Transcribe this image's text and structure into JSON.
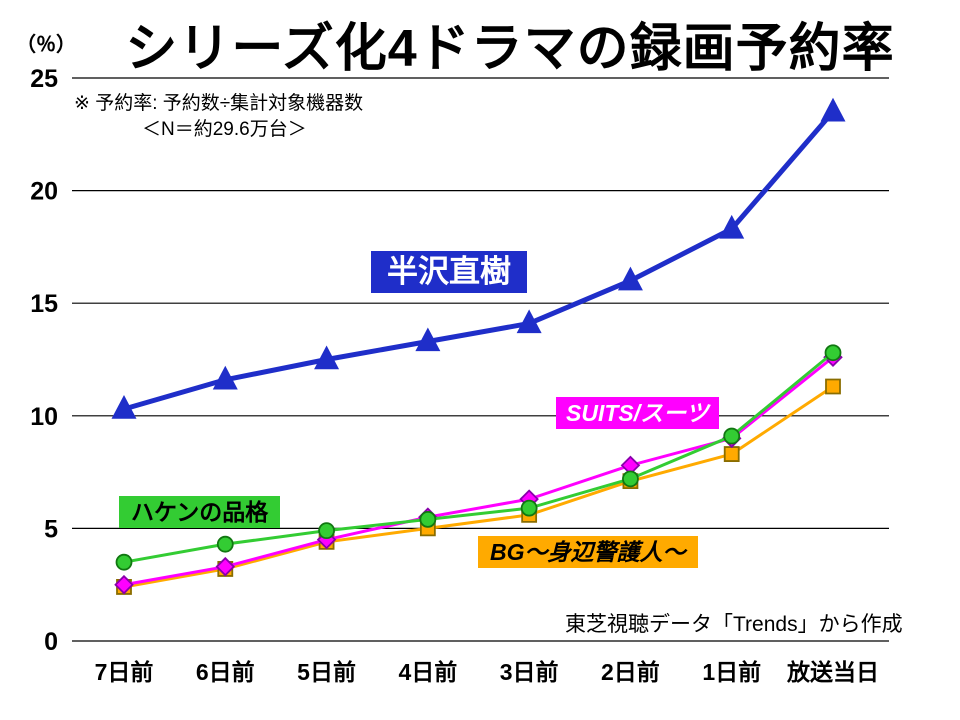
{
  "page": {
    "note_line1": "※ 予約率: 予約数÷集計対象機器数",
    "note_line2": "＜N＝約29.6万台＞",
    "source": "東芝視聴データ「Trends」から作成"
  },
  "chart_data": {
    "type": "line",
    "title": "シリーズ化4ドラマの録画予約率",
    "y_unit": "（％）",
    "categories": [
      "7日前",
      "6日前",
      "5日前",
      "4日前",
      "3日前",
      "2日前",
      "1日前",
      "放送当日"
    ],
    "ylim": [
      0,
      25
    ],
    "ytick_step": 5,
    "grid": "horizontal-black-lines",
    "legend_position": "labels-on-chart",
    "series": [
      {
        "name": "BG～身辺警護人～",
        "marker": "square",
        "color": "#ffaa00",
        "marker_stroke": "#8a6d00",
        "label_text_color": "#000000",
        "values": [
          2.4,
          3.2,
          4.4,
          5.0,
          5.6,
          7.1,
          8.3,
          11.3
        ]
      },
      {
        "name": "SUITS/スーツ",
        "marker": "diamond",
        "color": "#ff00ff",
        "marker_stroke": "#8800aa",
        "label_text_color": "#ffffff",
        "values": [
          2.5,
          3.3,
          4.5,
          5.5,
          6.3,
          7.8,
          9.0,
          12.6
        ]
      },
      {
        "name": "ハケンの品格",
        "marker": "circle",
        "color": "#33cc33",
        "marker_stroke": "#117711",
        "label_text_color": "#000000",
        "values": [
          3.5,
          4.3,
          4.9,
          5.4,
          5.9,
          7.2,
          9.1,
          12.8
        ]
      },
      {
        "name": "半沢直樹",
        "marker": "triangle",
        "color": "#1f2ec9",
        "marker_stroke": "#1f2ec9",
        "label_text_color": "#ffffff",
        "values": [
          10.3,
          11.6,
          12.5,
          13.3,
          14.1,
          16.0,
          18.3,
          23.5
        ]
      }
    ]
  }
}
